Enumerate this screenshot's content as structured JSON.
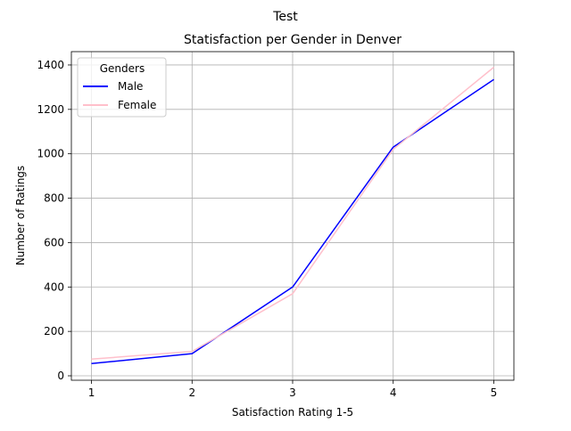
{
  "figure": {
    "suptitle": "Test"
  },
  "chart_data": {
    "type": "line",
    "title": "Statisfaction per Gender in Denver",
    "xlabel": "Satisfaction Rating 1-5",
    "ylabel": "Number of Ratings",
    "x": [
      1,
      2,
      3,
      4,
      5
    ],
    "xlim": [
      0.8,
      5.2
    ],
    "ylim": [
      -20,
      1460
    ],
    "xticks": [
      1,
      2,
      3,
      4,
      5
    ],
    "yticks": [
      0,
      200,
      400,
      600,
      800,
      1000,
      1200,
      1400
    ],
    "grid": true,
    "legend": {
      "title": "Genders",
      "placement": "upper-left"
    },
    "series": [
      {
        "name": "Male",
        "color": "#0000ff",
        "values": [
          55,
          100,
          400,
          1030,
          1335
        ]
      },
      {
        "name": "Female",
        "color": "#ffc0cb",
        "values": [
          75,
          110,
          370,
          1020,
          1390
        ]
      }
    ]
  }
}
